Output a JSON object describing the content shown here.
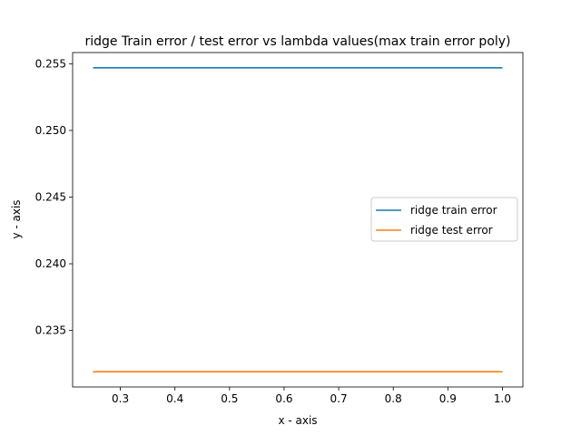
{
  "chart_data": {
    "type": "line",
    "title": "ridge Train error / test error vs lambda values(max train error poly)",
    "xlabel": "x - axis",
    "ylabel": "y - axis",
    "xlim": [
      0.2125,
      1.0375
    ],
    "ylim": [
      0.23076,
      0.25584
    ],
    "xticks": [
      0.3,
      0.4,
      0.5,
      0.6,
      0.7,
      0.8,
      0.9,
      1.0
    ],
    "xtick_labels": [
      "0.3",
      "0.4",
      "0.5",
      "0.6",
      "0.7",
      "0.8",
      "0.9",
      "1.0"
    ],
    "yticks": [
      0.235,
      0.24,
      0.245,
      0.25,
      0.255
    ],
    "ytick_labels": [
      "0.235",
      "0.240",
      "0.245",
      "0.250",
      "0.255"
    ],
    "grid": false,
    "legend_position": "center-right",
    "x": [
      0.25,
      0.5,
      0.75,
      1.0
    ],
    "series": [
      {
        "name": "ridge train error",
        "color": "#1f77b4",
        "values": [
          0.2547,
          0.2547,
          0.2547,
          0.2547
        ]
      },
      {
        "name": "ridge test error",
        "color": "#ff7f0e",
        "values": [
          0.2319,
          0.2319,
          0.2319,
          0.2319
        ]
      }
    ]
  }
}
